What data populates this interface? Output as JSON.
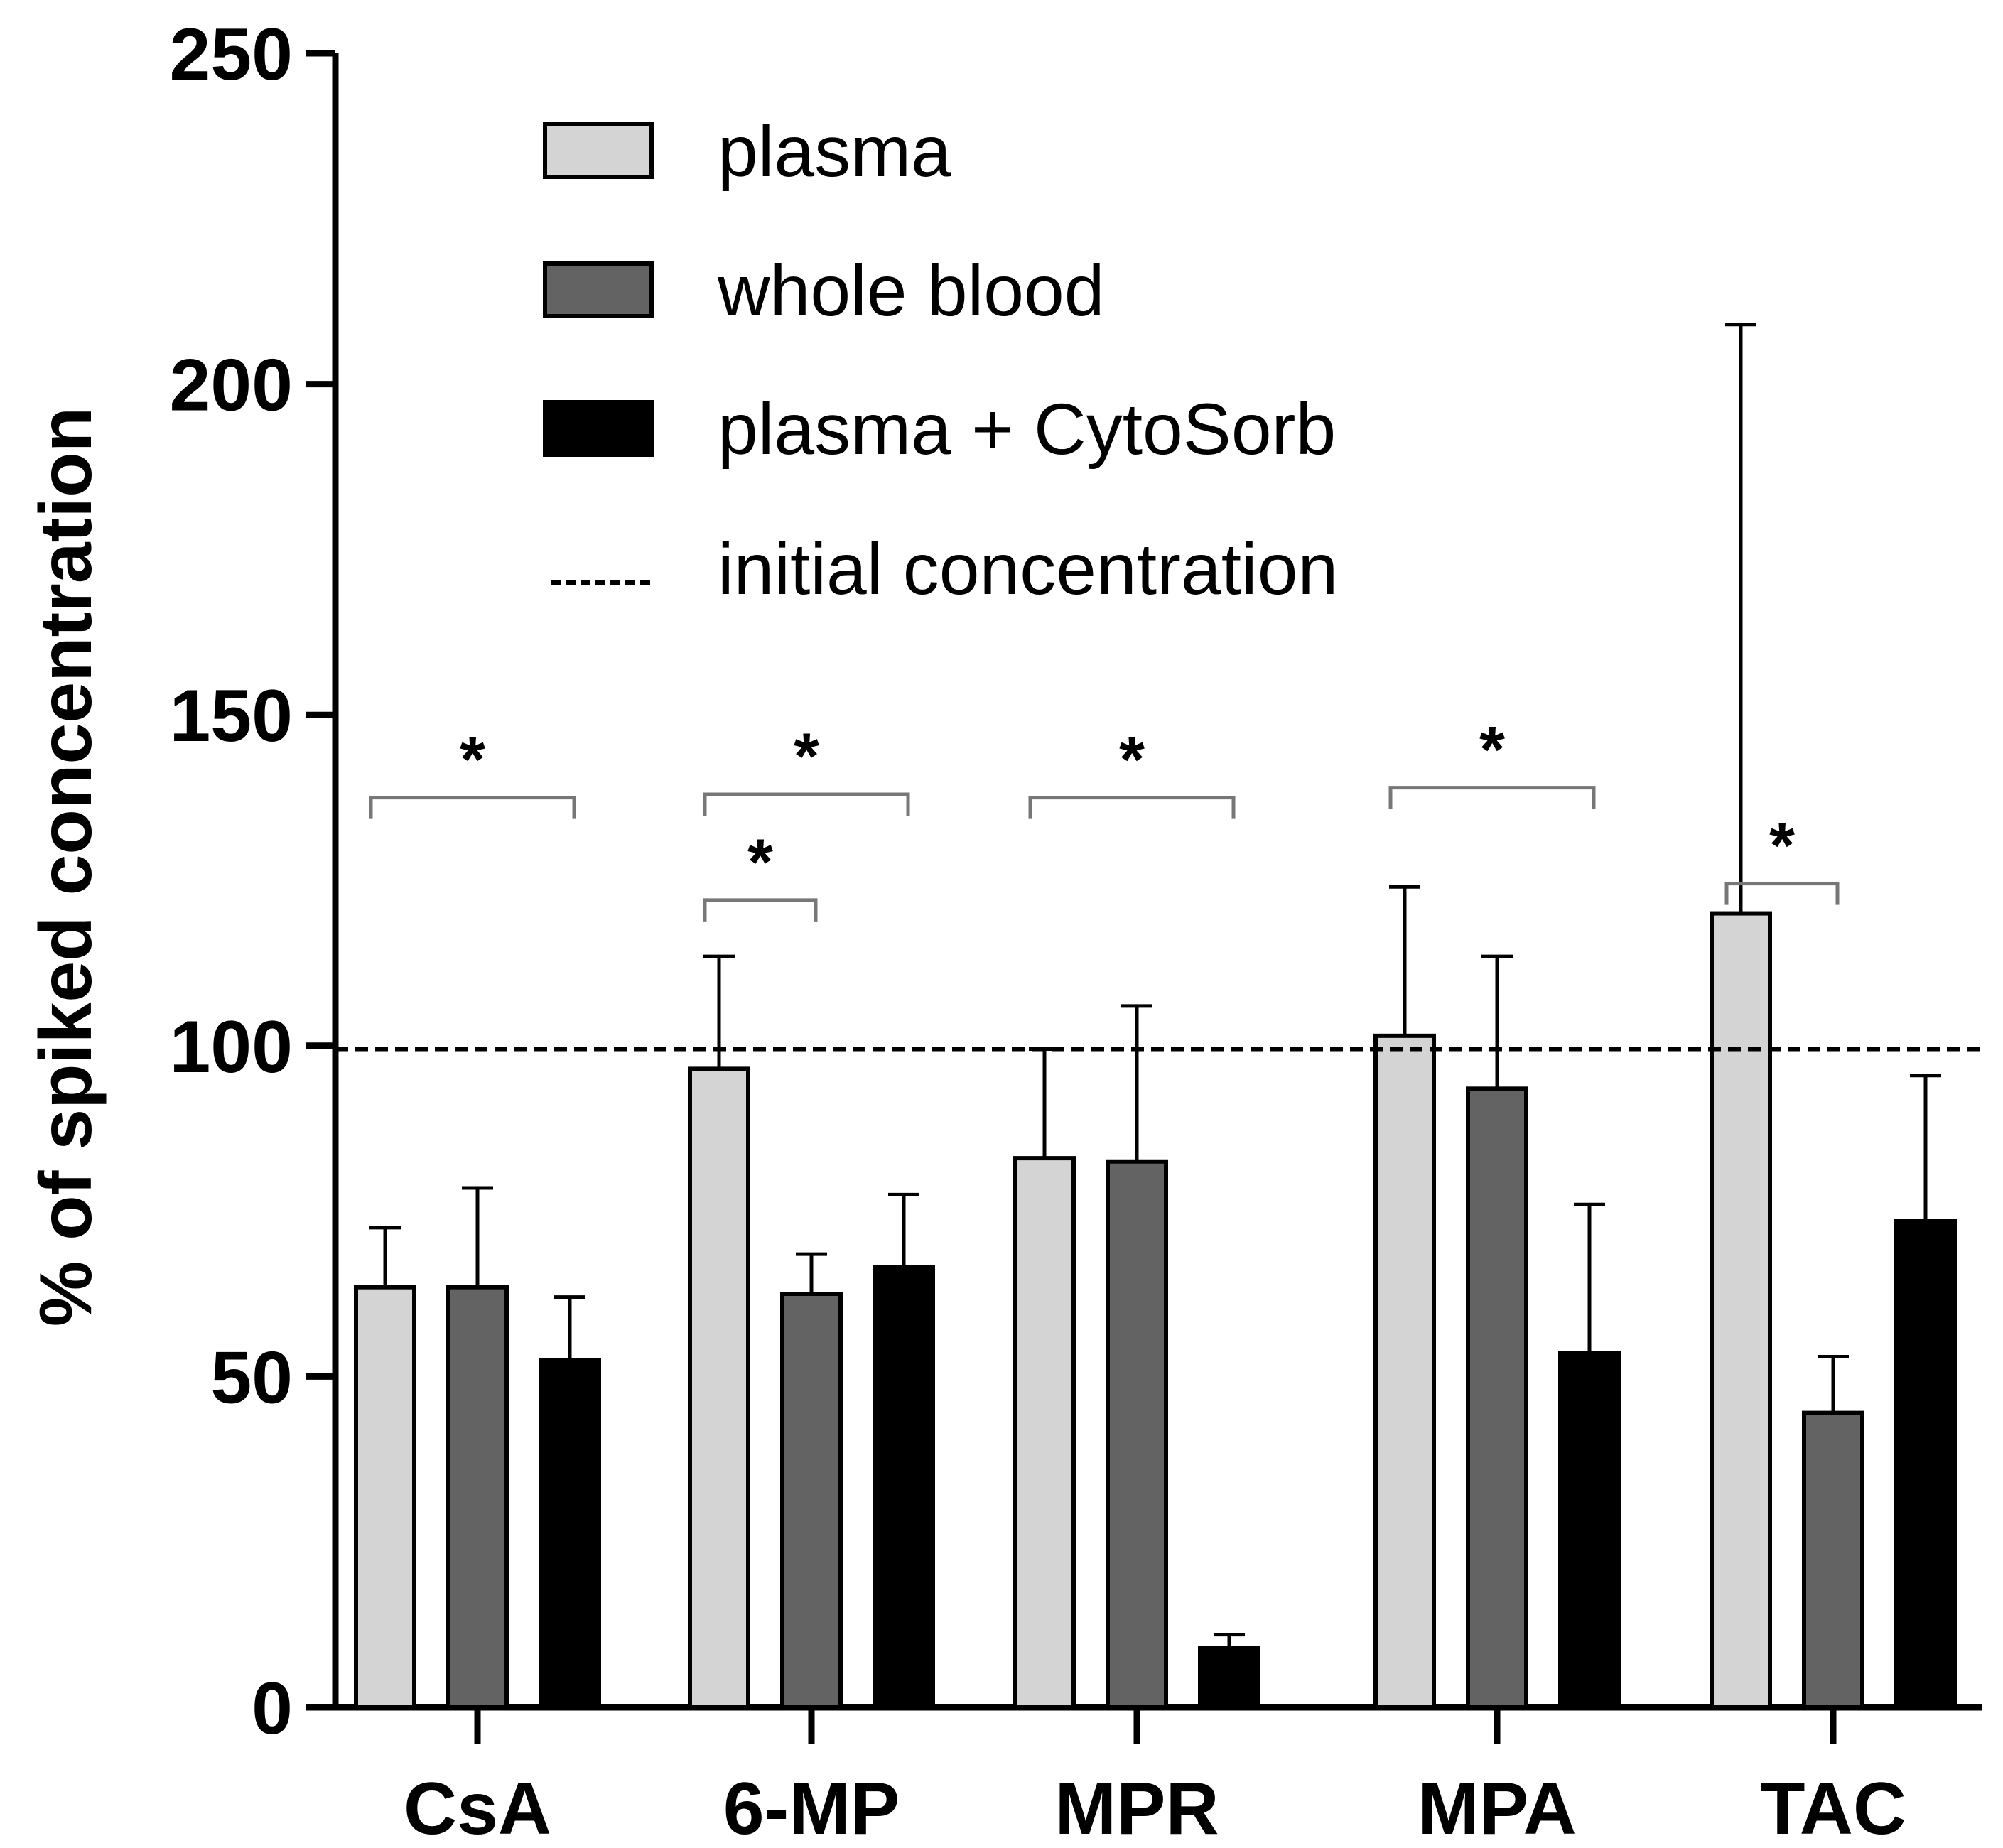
{
  "chart_data": {
    "type": "bar",
    "title": "",
    "xlabel": "",
    "ylabel": "% of spiked concentration",
    "ylim": [
      0,
      250
    ],
    "yticks": [
      0,
      50,
      100,
      150,
      200,
      250
    ],
    "categories": [
      "CsA",
      "6-MP",
      "MPR",
      "MPA",
      "TAC"
    ],
    "series": [
      {
        "name": "plasma",
        "color": "#d4d4d4",
        "values": [
          63.5,
          96.5,
          83,
          101.5,
          120
        ],
        "errors": [
          9,
          17,
          16.5,
          22.5,
          89
        ]
      },
      {
        "name": "whole blood",
        "color": "#636363",
        "values": [
          63.5,
          62.5,
          82.5,
          93.5,
          44.5
        ],
        "errors": [
          15,
          6,
          23.5,
          20,
          8.5
        ]
      },
      {
        "name": "plasma + CytoSorb",
        "color": "#000000",
        "values": [
          52.5,
          66.5,
          9,
          53.5,
          73.5
        ],
        "errors": [
          9.5,
          11,
          2,
          22.5,
          22
        ]
      }
    ],
    "reference_line": {
      "name": "initial concentration",
      "value": 99.5,
      "style": "dashed"
    },
    "legend_position": "top-center",
    "significance": [
      {
        "category": "CsA",
        "from_series": 0,
        "to_series": 2,
        "y": 137.5,
        "label": "*"
      },
      {
        "category": "6-MP",
        "from_series": 0,
        "to_series": 2,
        "y": 138,
        "label": "*"
      },
      {
        "category": "6-MP",
        "from_series": 0,
        "to_series": 1,
        "y": 122,
        "label": "*"
      },
      {
        "category": "MPR",
        "from_series": 0,
        "to_series": 2,
        "y": 137.5,
        "label": "*"
      },
      {
        "category": "MPA",
        "from_series": 0,
        "to_series": 2,
        "y": 139,
        "label": "*"
      },
      {
        "category": "TAC",
        "from_series": 0,
        "to_series": 1,
        "y": 124.5,
        "label": "*"
      }
    ]
  }
}
